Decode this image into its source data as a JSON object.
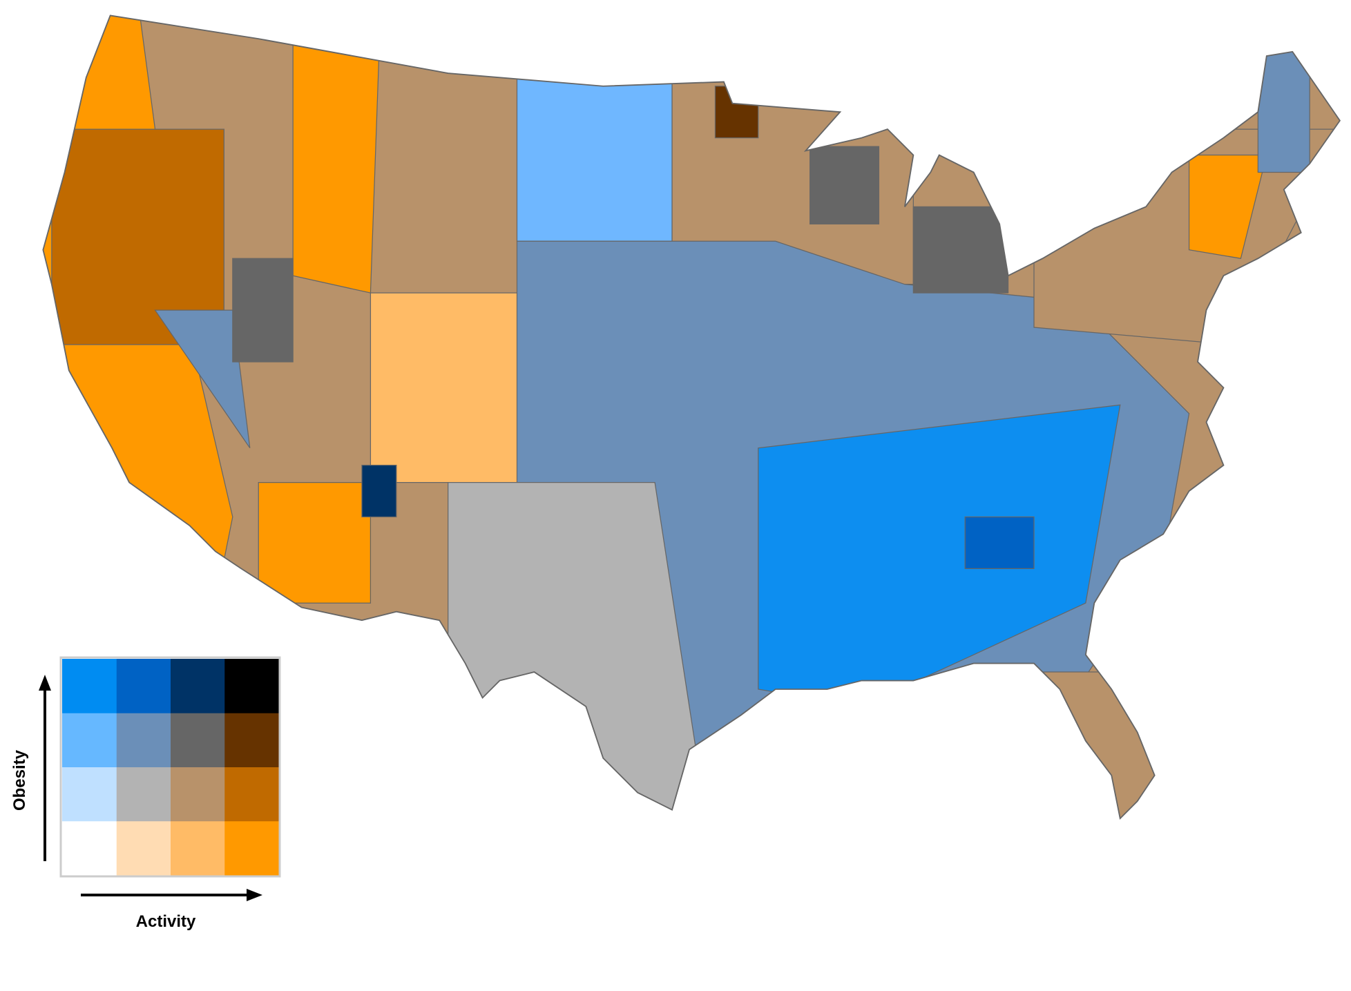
{
  "legend": {
    "y_label": "Obesity",
    "x_label": "Activity",
    "colors": [
      [
        "#008cf2",
        "#0062c4",
        "#003366",
        "#000000"
      ],
      [
        "#66b8ff",
        "#6b8fb8",
        "#666666",
        "#663300"
      ],
      [
        "#bfe0ff",
        "#b3b3b3",
        "#b8926a",
        "#c06a00"
      ],
      [
        "#ffffff",
        "#ffdcb3",
        "#ffbb66",
        "#ff9900"
      ]
    ]
  }
}
